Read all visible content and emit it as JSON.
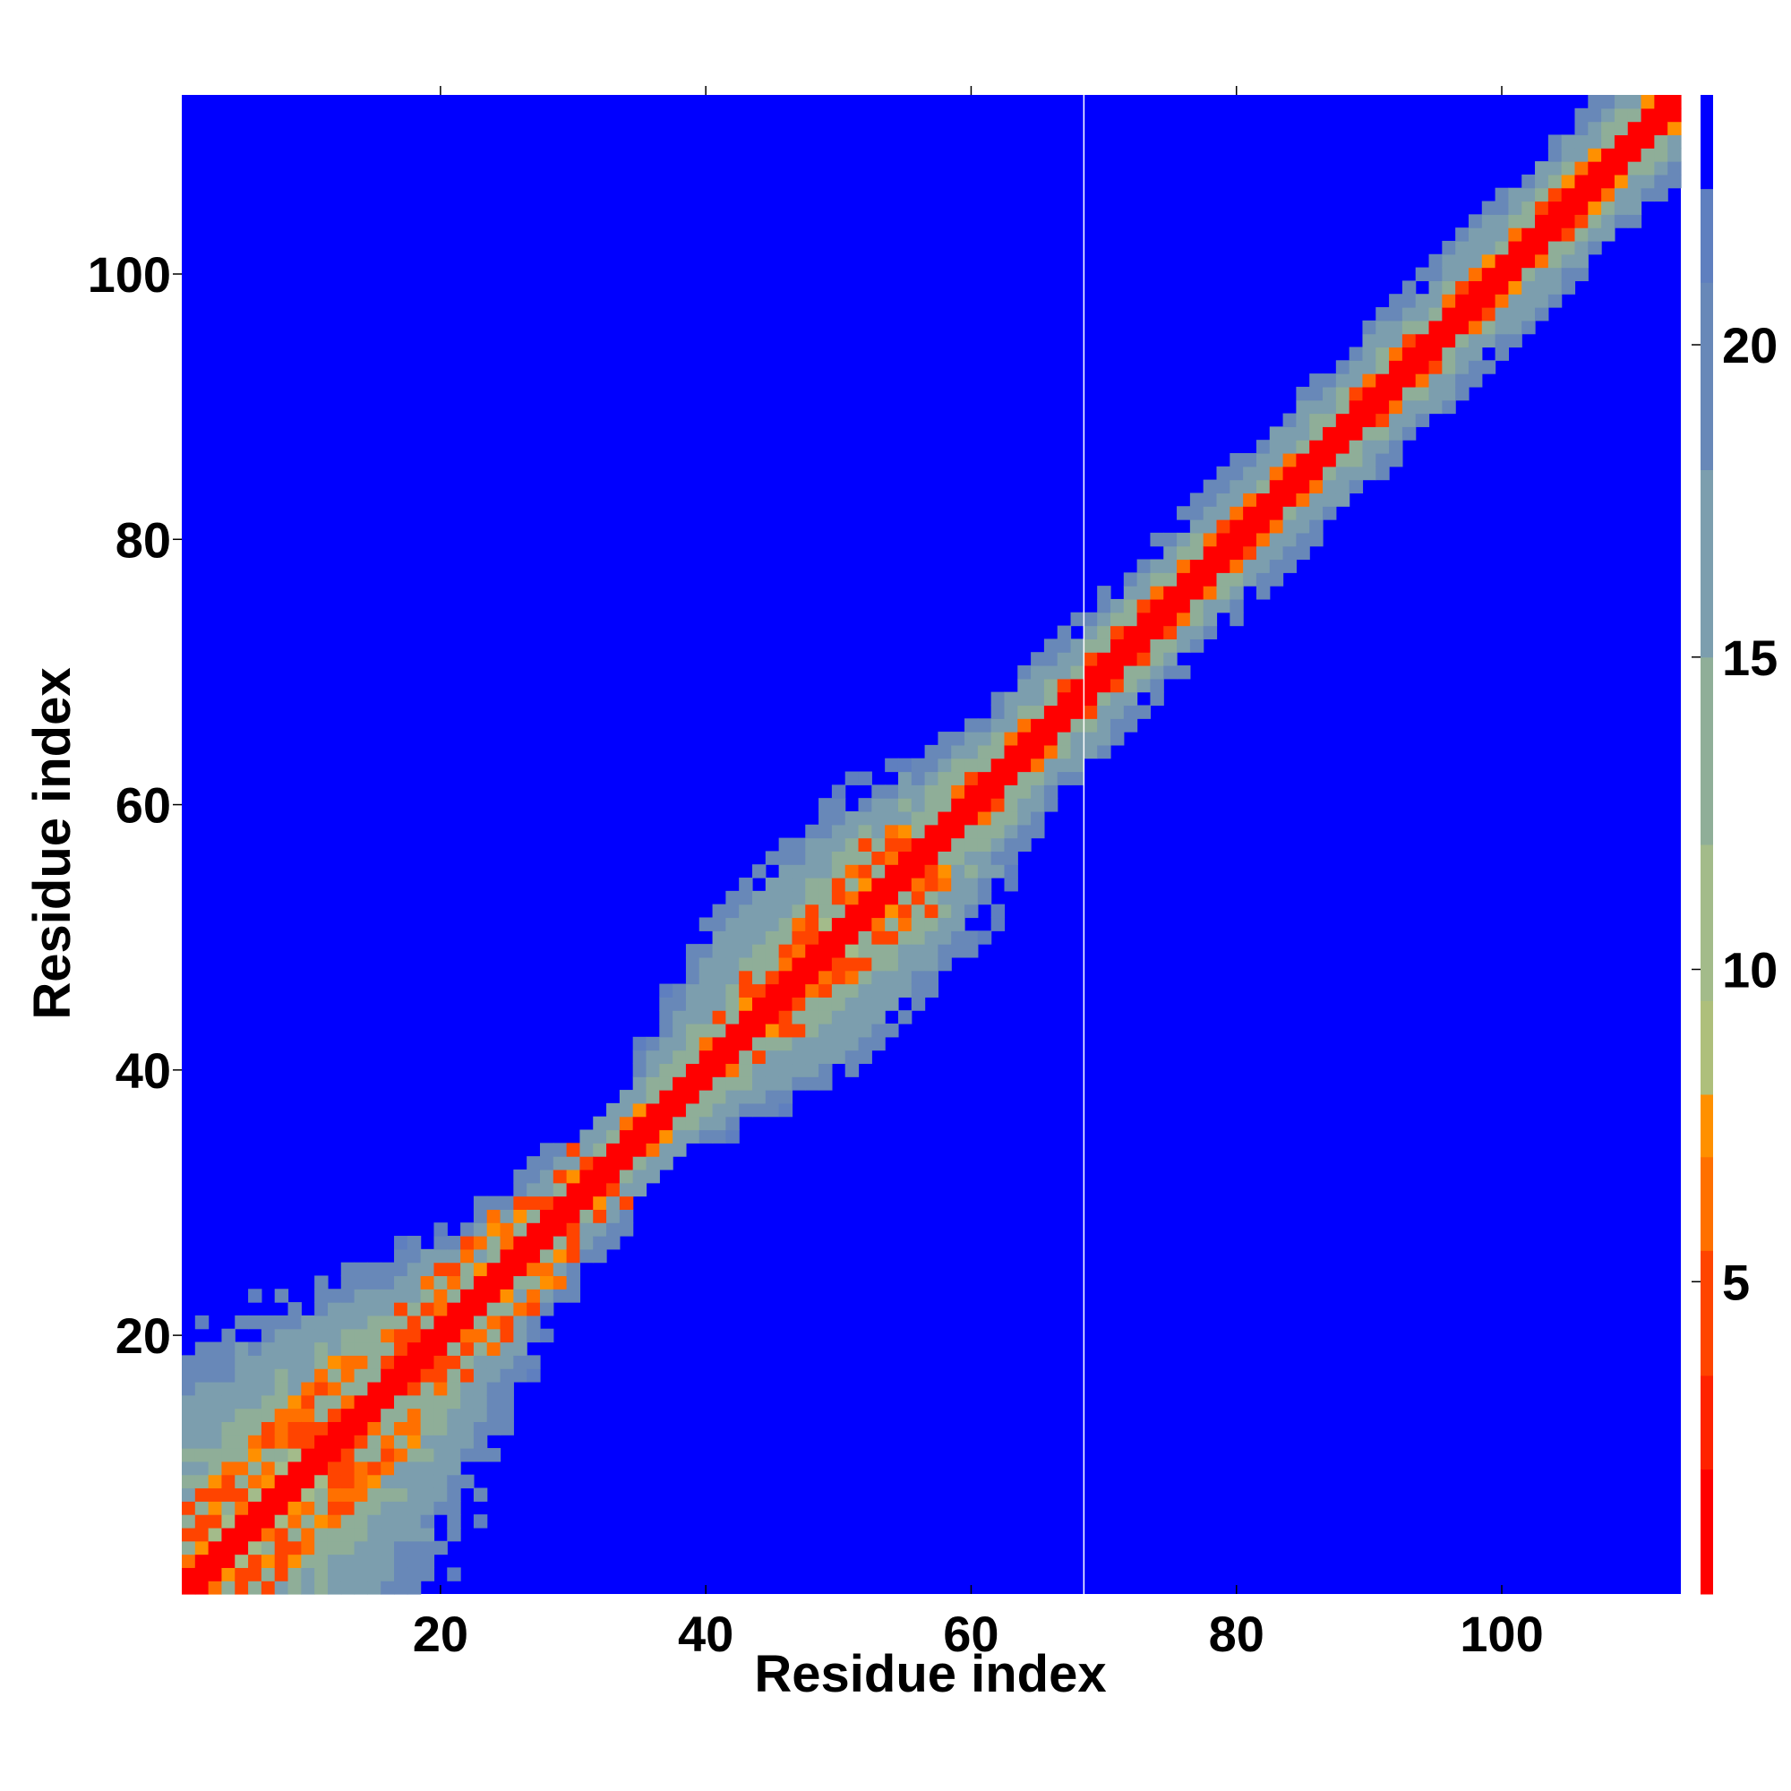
{
  "chart_data": {
    "type": "heatmap",
    "title": "",
    "xlabel": "Residue index",
    "ylabel": "Residue index",
    "xlim": [
      0.5,
      113.5
    ],
    "ylim": [
      0.5,
      113.5
    ],
    "n_residues": 113,
    "x_ticks": [
      20,
      40,
      60,
      80,
      100
    ],
    "y_ticks": [
      20,
      40,
      60,
      80,
      100
    ],
    "colorbar": {
      "range": [
        0,
        24
      ],
      "ticks": [
        5,
        10,
        15,
        20
      ],
      "color_bins": [
        {
          "from": 0,
          "to": 2,
          "color": "#ff0000"
        },
        {
          "from": 2,
          "to": 3.5,
          "color": "#ff2200"
        },
        {
          "from": 3.5,
          "to": 5.5,
          "color": "#ff4400"
        },
        {
          "from": 5.5,
          "to": 7,
          "color": "#ff7000"
        },
        {
          "from": 7,
          "to": 8,
          "color": "#ff9000"
        },
        {
          "from": 8,
          "to": 9.5,
          "color": "#aebf7b"
        },
        {
          "from": 9.5,
          "to": 12,
          "color": "#a3bb8a"
        },
        {
          "from": 12,
          "to": 15,
          "color": "#8fae98"
        },
        {
          "from": 15,
          "to": 18,
          "color": "#7c9eae"
        },
        {
          "from": 18,
          "to": 21,
          "color": "#6888b8"
        },
        {
          "from": 21,
          "to": 22.5,
          "color": "#5f7fbf"
        },
        {
          "from": 22.5,
          "to": 24,
          "color": "#0000ff"
        }
      ],
      "background_color": "#0000ff"
    },
    "separator_line": {
      "residue": 68.5,
      "color": "#ffffff"
    },
    "contact_band": [
      {
        "residue": 1,
        "half_width": 8,
        "orange_width": 6
      },
      {
        "residue": 5,
        "half_width": 18,
        "orange_width": 6
      },
      {
        "residue": 10,
        "half_width": 18,
        "orange_width": 6
      },
      {
        "residue": 15,
        "half_width": 15,
        "orange_width": 6
      },
      {
        "residue": 20,
        "half_width": 11,
        "orange_width": 5
      },
      {
        "residue": 25,
        "half_width": 7,
        "orange_width": 5
      },
      {
        "residue": 30,
        "half_width": 6,
        "orange_width": 5
      },
      {
        "residue": 35,
        "half_width": 5,
        "orange_width": 3
      },
      {
        "residue": 40,
        "half_width": 7,
        "orange_width": 2
      },
      {
        "residue": 45,
        "half_width": 11,
        "orange_width": 4
      },
      {
        "residue": 50,
        "half_width": 12,
        "orange_width": 5
      },
      {
        "residue": 55,
        "half_width": 11,
        "orange_width": 5
      },
      {
        "residue": 60,
        "half_width": 7,
        "orange_width": 3
      },
      {
        "residue": 65,
        "half_width": 6,
        "orange_width": 2
      },
      {
        "residue": 70,
        "half_width": 6,
        "orange_width": 2
      },
      {
        "residue": 80,
        "half_width": 6,
        "orange_width": 2
      },
      {
        "residue": 90,
        "half_width": 6,
        "orange_width": 2
      },
      {
        "residue": 100,
        "half_width": 6,
        "orange_width": 2
      },
      {
        "residue": 113,
        "half_width": 6,
        "orange_width": 2
      }
    ]
  }
}
